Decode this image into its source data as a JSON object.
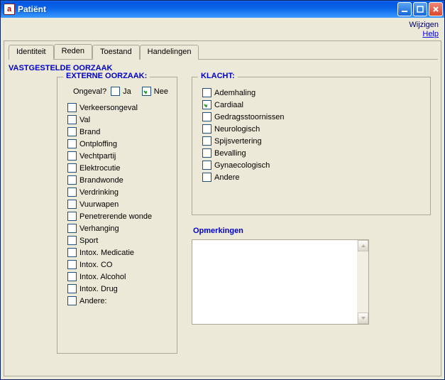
{
  "window": {
    "title": "Patiënt",
    "icon_glyph": "a"
  },
  "top_links": {
    "wijzigen": "Wijzigen",
    "help": "Help"
  },
  "tabs": [
    {
      "label": "Identiteit",
      "active": false
    },
    {
      "label": "Reden",
      "active": true
    },
    {
      "label": "Toestand",
      "active": false
    },
    {
      "label": "Handelingen",
      "active": false
    }
  ],
  "section_title": "VASTGESTELDE OORZAAK",
  "externe": {
    "legend": "EXTERNE OORZAAK:",
    "ongeval_label": "Ongeval?",
    "ja": {
      "label": "Ja",
      "checked": false
    },
    "nee": {
      "label": "Nee",
      "checked": true
    },
    "items": [
      {
        "label": "Verkeersongeval",
        "checked": false
      },
      {
        "label": "Val",
        "checked": false
      },
      {
        "label": "Brand",
        "checked": false
      },
      {
        "label": "Ontploffing",
        "checked": false
      },
      {
        "label": "Vechtpartij",
        "checked": false
      },
      {
        "label": "Elektrocutie",
        "checked": false
      },
      {
        "label": "Brandwonde",
        "checked": false
      },
      {
        "label": "Verdrinking",
        "checked": false
      },
      {
        "label": "Vuurwapen",
        "checked": false
      },
      {
        "label": "Penetrerende wonde",
        "checked": false
      },
      {
        "label": "Verhanging",
        "checked": false
      },
      {
        "label": "Sport",
        "checked": false
      },
      {
        "label": "Intox. Medicatie",
        "checked": false
      },
      {
        "label": "Intox. CO",
        "checked": false
      },
      {
        "label": "Intox. Alcohol",
        "checked": false
      },
      {
        "label": "Intox. Drug",
        "checked": false
      },
      {
        "label": "Andere:",
        "checked": false
      }
    ]
  },
  "klacht": {
    "legend": "KLACHT:",
    "items": [
      {
        "label": "Ademhaling",
        "checked": false
      },
      {
        "label": "Cardiaal",
        "checked": true
      },
      {
        "label": "Gedragsstoornissen",
        "checked": false
      },
      {
        "label": "Neurologisch",
        "checked": false
      },
      {
        "label": "Spijsvertering",
        "checked": false
      },
      {
        "label": "Bevalling",
        "checked": false
      },
      {
        "label": "Gynaecologisch",
        "checked": false
      },
      {
        "label": "Andere",
        "checked": false
      }
    ]
  },
  "opmerkingen": {
    "label": "Opmerkingen",
    "value": ""
  },
  "colors": {
    "accent": "#0000cc",
    "panel_bg": "#ece9d8",
    "border": "#aca899",
    "check_green": "#219b21"
  }
}
